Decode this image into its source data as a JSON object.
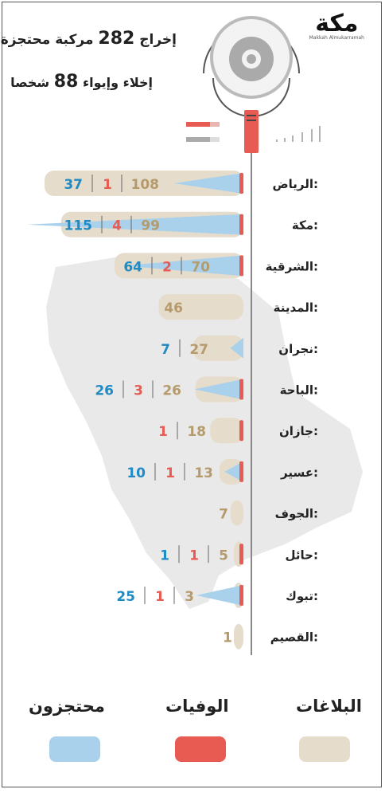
{
  "brand": {
    "name": "مكة",
    "sub": "Makkah Almukarramah"
  },
  "headline": {
    "line1_pre": "إخراج",
    "line1_num": "282",
    "line1_post": "مركبة محتجزة",
    "line2_pre": "إخلاء وإيواء",
    "line2_num": "88",
    "line2_post": "شخصا"
  },
  "colors": {
    "reports": "#e6dccb",
    "reports_text": "#b59a6c",
    "deaths": "#e75b53",
    "detained": "#a9d1ec",
    "detained_text": "#1f8bc4",
    "map": "#e9e9e9",
    "axis": "#888888"
  },
  "chart_data": {
    "type": "bar",
    "series_names": [
      "البلاغات",
      "الوفيات",
      "محتجزون"
    ],
    "categories": [
      "الرياض:",
      "مكة:",
      "الشرقية:",
      "المدينة:",
      "نجران:",
      "الباحة:",
      "جازان:",
      "عسير:",
      "الجوف:",
      "حائل:",
      "تبوك:",
      "القصيم:"
    ],
    "reports": [
      108,
      99,
      70,
      46,
      27,
      26,
      18,
      13,
      7,
      5,
      3,
      1
    ],
    "deaths": [
      1,
      4,
      2,
      null,
      null,
      3,
      1,
      1,
      null,
      1,
      1,
      null
    ],
    "detained": [
      37,
      115,
      64,
      null,
      7,
      26,
      null,
      10,
      null,
      1,
      25,
      null
    ]
  },
  "legend": {
    "reports": "البلاغات",
    "deaths": "الوفيات",
    "detained": "محتجزون"
  }
}
